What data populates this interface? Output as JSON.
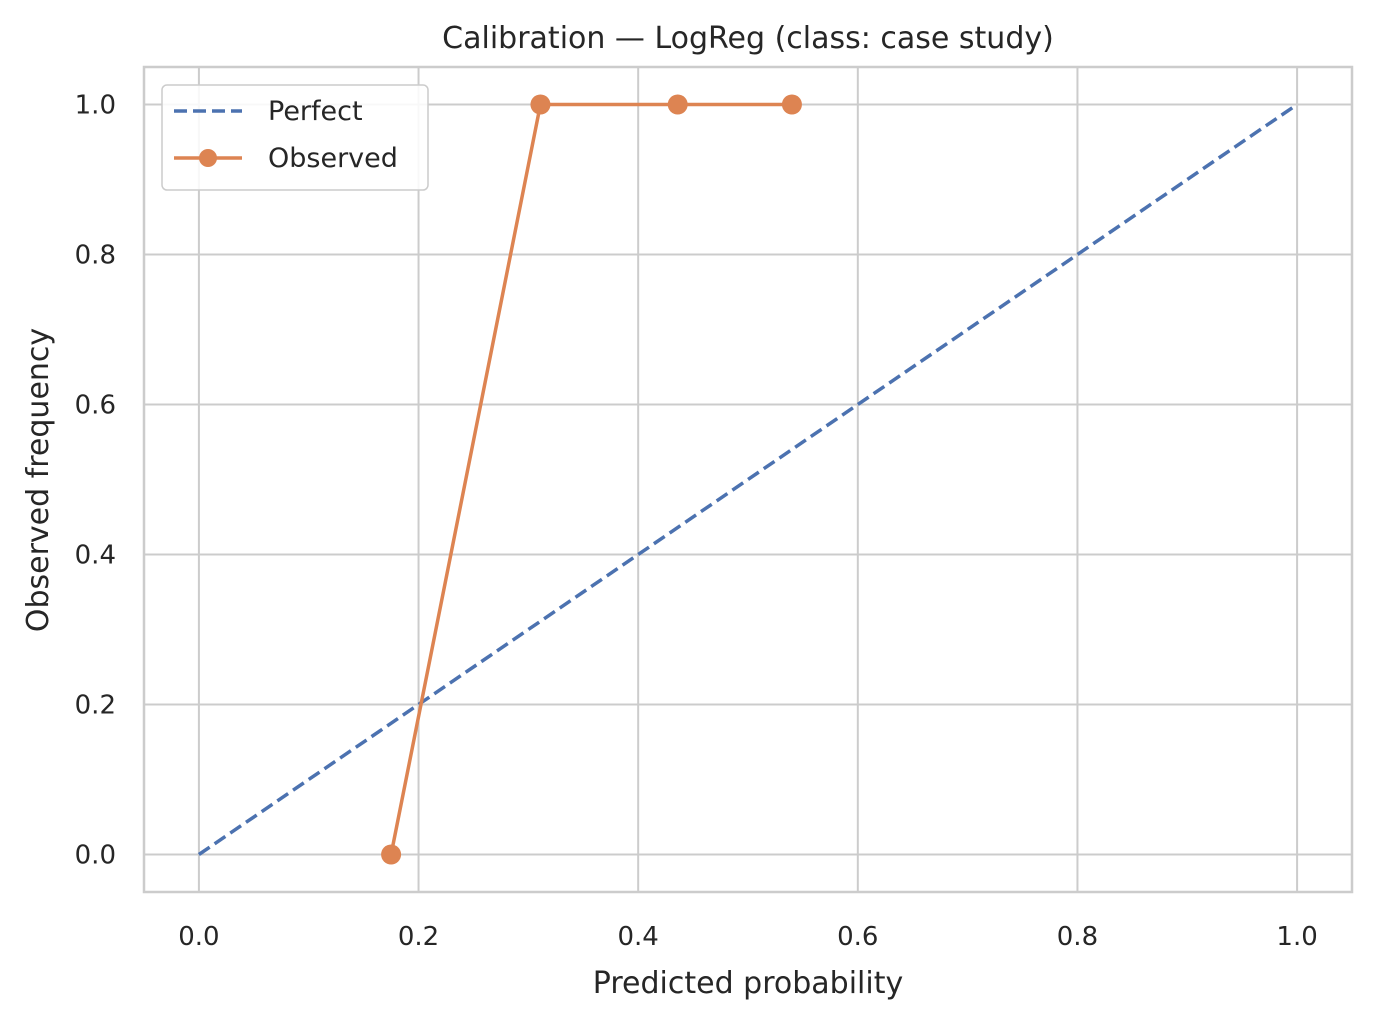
{
  "chart_data": {
    "type": "line",
    "title": "Calibration — LogReg (class: case study)",
    "xlabel": "Predicted probability",
    "ylabel": "Observed frequency",
    "xlim": [
      -0.05,
      1.05
    ],
    "ylim": [
      -0.05,
      1.05
    ],
    "xticks": [
      "0.0",
      "0.2",
      "0.4",
      "0.6",
      "0.8",
      "1.0"
    ],
    "yticks": [
      "0.0",
      "0.2",
      "0.4",
      "0.6",
      "0.8",
      "1.0"
    ],
    "grid": true,
    "legend_position": "top-left",
    "series": [
      {
        "name": "Perfect",
        "style": "dashed",
        "markers": false,
        "color": "#4c72b0",
        "x": [
          0.0,
          1.0
        ],
        "y": [
          0.0,
          1.0
        ]
      },
      {
        "name": "Observed",
        "style": "solid",
        "markers": true,
        "color": "#dd8452",
        "x": [
          0.175,
          0.311,
          0.436,
          0.54
        ],
        "y": [
          0.0,
          1.0,
          1.0,
          1.0
        ]
      }
    ]
  }
}
